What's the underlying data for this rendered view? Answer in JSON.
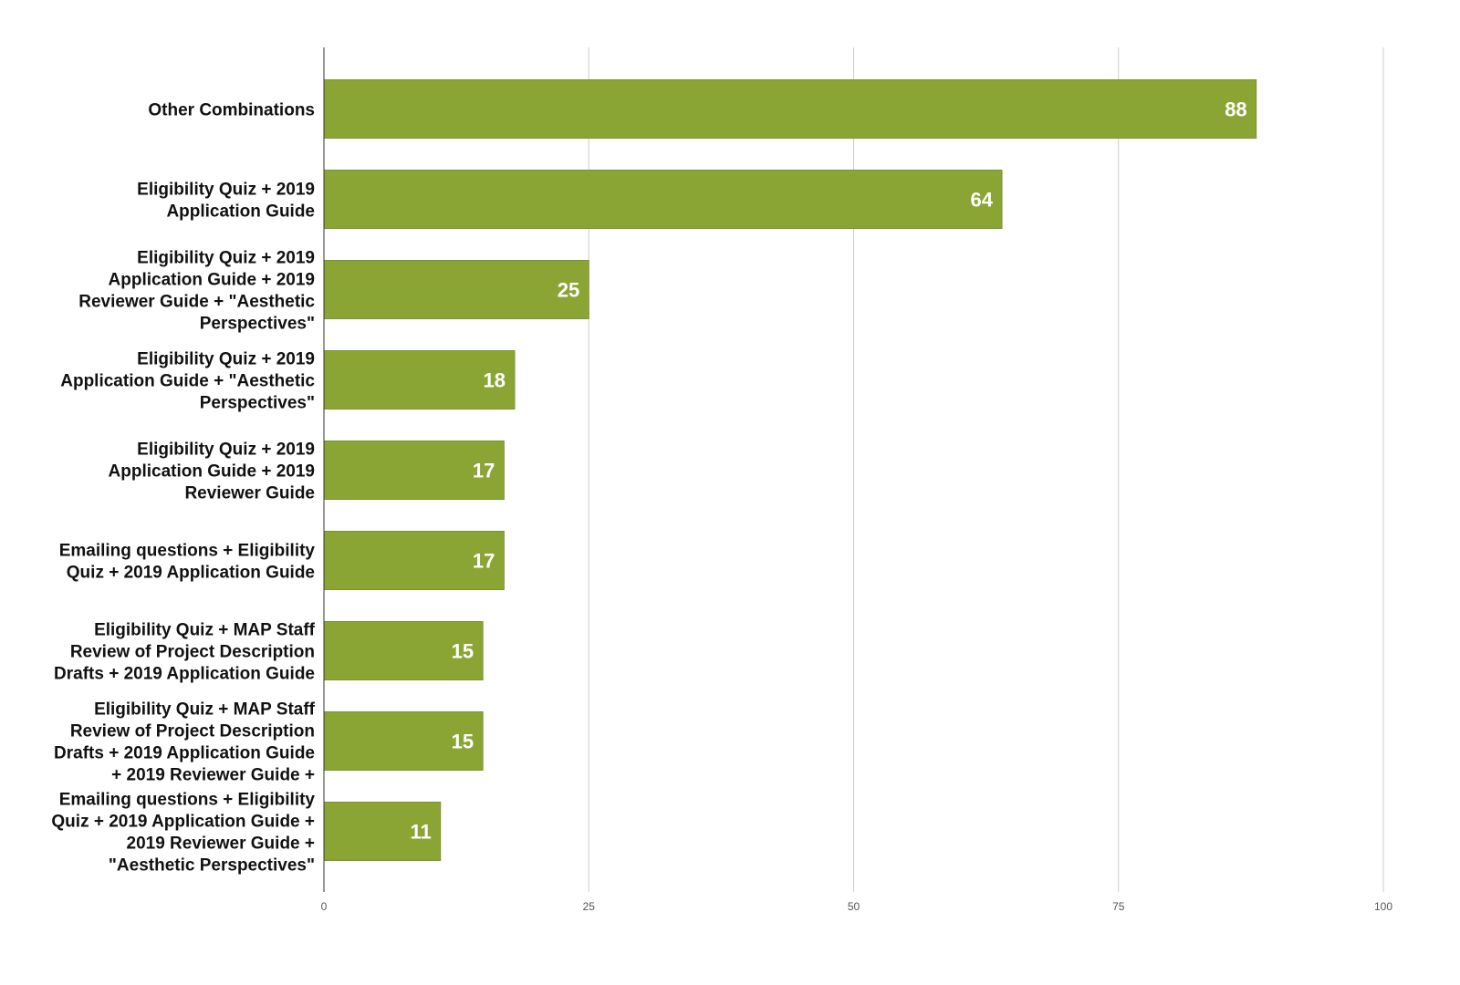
{
  "chart_data": {
    "type": "bar",
    "orientation": "horizontal",
    "categories": [
      [
        "Other Combinations"
      ],
      [
        "Eligibility Quiz + 2019",
        "Application Guide"
      ],
      [
        "Eligibility Quiz + 2019",
        "Application Guide + 2019",
        "Reviewer Guide + \"Aesthetic",
        "Perspectives\""
      ],
      [
        "Eligibility Quiz + 2019",
        "Application Guide + \"Aesthetic",
        "Perspectives\""
      ],
      [
        "Eligibility Quiz + 2019",
        "Application Guide + 2019",
        "Reviewer Guide"
      ],
      [
        "Emailing questions + Eligibility",
        "Quiz + 2019 Application Guide"
      ],
      [
        "Eligibility Quiz + MAP Staff",
        "Review of Project Description",
        "Drafts + 2019 Application Guide"
      ],
      [
        "Eligibility Quiz + MAP Staff",
        "Review of Project Description",
        "Drafts + 2019 Application Guide",
        "+ 2019 Reviewer Guide +"
      ],
      [
        "Emailing questions + Eligibility",
        "Quiz + 2019 Application Guide +",
        "2019 Reviewer Guide +",
        "\"Aesthetic Perspectives\""
      ]
    ],
    "values": [
      88,
      64,
      25,
      18,
      17,
      17,
      15,
      15,
      11
    ],
    "data_labels": [
      "88",
      "64",
      "25",
      "18",
      "17",
      "17",
      "15",
      "15",
      "11"
    ],
    "xlim": [
      0,
      100
    ],
    "xticks": [
      "0",
      "25",
      "50",
      "75",
      "100"
    ],
    "xtick_values": [
      0,
      25,
      50,
      75,
      100
    ],
    "title": "",
    "xlabel": "",
    "ylabel": "",
    "grid": "vertical",
    "legend": "none",
    "colors": {
      "bar": "#8ba535",
      "bar_stroke": "#7a9330",
      "grid": "#cccccc",
      "axis": "#333333",
      "category_text": "#111111",
      "tick_text": "#555555",
      "value_text": "#ffffff"
    }
  }
}
